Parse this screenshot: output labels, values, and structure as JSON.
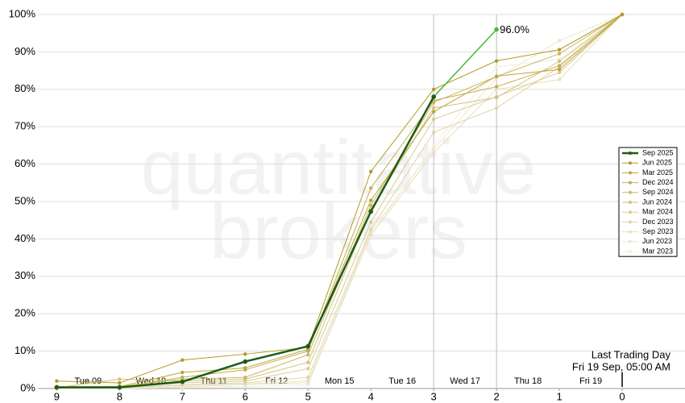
{
  "chart_data": {
    "type": "line",
    "watermark": [
      "quantitative",
      "brokers"
    ],
    "x": [
      9,
      8,
      7,
      6,
      5,
      4,
      3,
      2,
      1,
      0
    ],
    "xlim": [
      9.3,
      -1
    ],
    "xticks": [
      9,
      8,
      7,
      6,
      5,
      4,
      3,
      2,
      1,
      0
    ],
    "day_labels": [
      "Tue 09",
      "Wed 10",
      "Thu 11",
      "Fri 12",
      "Mon 15",
      "Tue 16",
      "Wed 17",
      "Thu 18",
      "Fri 19"
    ],
    "ylim": [
      0,
      100
    ],
    "yticks": [
      {
        "value": 0,
        "label": "0%"
      },
      {
        "value": 10,
        "label": "10%"
      },
      {
        "value": 20,
        "label": "20%"
      },
      {
        "value": 30,
        "label": "30%"
      },
      {
        "value": 40,
        "label": "40%"
      },
      {
        "value": 50,
        "label": "50%"
      },
      {
        "value": 60,
        "label": "60%"
      },
      {
        "value": 70,
        "label": "70%"
      },
      {
        "value": 80,
        "label": "80%"
      },
      {
        "value": 90,
        "label": "90%"
      },
      {
        "value": 100,
        "label": "100%"
      }
    ],
    "grid": true,
    "vlines": [
      3,
      2
    ],
    "legend": "right",
    "last_trading_day": {
      "x": 0,
      "lines": [
        "Last Trading Day",
        "Fri 19 Sep, 05:00 AM"
      ]
    },
    "series": [
      {
        "name": "Sep 2025",
        "color": "#1e5c14",
        "last_segment_color": "#4cb840",
        "values": [
          0.3,
          0.3,
          1.8,
          7.2,
          11.3,
          47.3,
          78,
          96,
          null,
          null
        ],
        "value_labels": [
          null,
          null,
          null,
          null,
          null,
          null,
          null,
          "96.0%",
          null,
          null
        ]
      },
      {
        "name": "Jun 2025",
        "color": "#b39a22",
        "values": [
          2.0,
          1.5,
          7.6,
          9.2,
          11.0,
          58.0,
          80,
          87.6,
          90.6,
          100
        ]
      },
      {
        "name": "Mar 2025",
        "color": "#bba53a",
        "values": [
          0.5,
          0.5,
          4.3,
          5.5,
          10.5,
          50.3,
          74,
          83.5,
          85.3,
          100
        ]
      },
      {
        "name": "Dec 2024",
        "color": "#c3ae50",
        "values": [
          0.3,
          0.3,
          3.0,
          5.0,
          10.0,
          53.6,
          77,
          80.7,
          86.3,
          100
        ]
      },
      {
        "name": "Sep 2024",
        "color": "#cab866",
        "values": [
          0.3,
          0.5,
          2.5,
          3.0,
          9.0,
          49.0,
          76.5,
          83.4,
          89.5,
          100
        ]
      },
      {
        "name": "Jun 2024",
        "color": "#d2c27d",
        "values": [
          0.2,
          2.5,
          2.0,
          2.5,
          7.0,
          48.0,
          75,
          77.8,
          87.5,
          100
        ]
      },
      {
        "name": "Mar 2024",
        "color": "#d9cc93",
        "values": [
          0.1,
          0.3,
          1.5,
          2.0,
          5.3,
          44.5,
          72,
          78,
          84.5,
          100
        ]
      },
      {
        "name": "Dec 2023",
        "color": "#e0d6a9",
        "values": [
          0.1,
          0.2,
          1.0,
          1.5,
          3.0,
          42.5,
          68.5,
          75,
          86,
          100
        ]
      },
      {
        "name": "Sep 2023",
        "color": "#e7e0bd",
        "values": [
          0.1,
          0.2,
          0.8,
          1.2,
          2.0,
          41,
          63,
          80,
          82.6,
          100
        ]
      },
      {
        "name": "Jun 2023",
        "color": "#ede7ce",
        "values": [
          0,
          0.1,
          0.5,
          1.0,
          1.5,
          42,
          64,
          83,
          93,
          100
        ]
      },
      {
        "name": "Mar 2023",
        "color": "#f2eddc",
        "values": [
          0,
          0,
          0.3,
          0.5,
          1.0,
          41,
          65,
          86,
          88,
          100
        ]
      }
    ]
  }
}
